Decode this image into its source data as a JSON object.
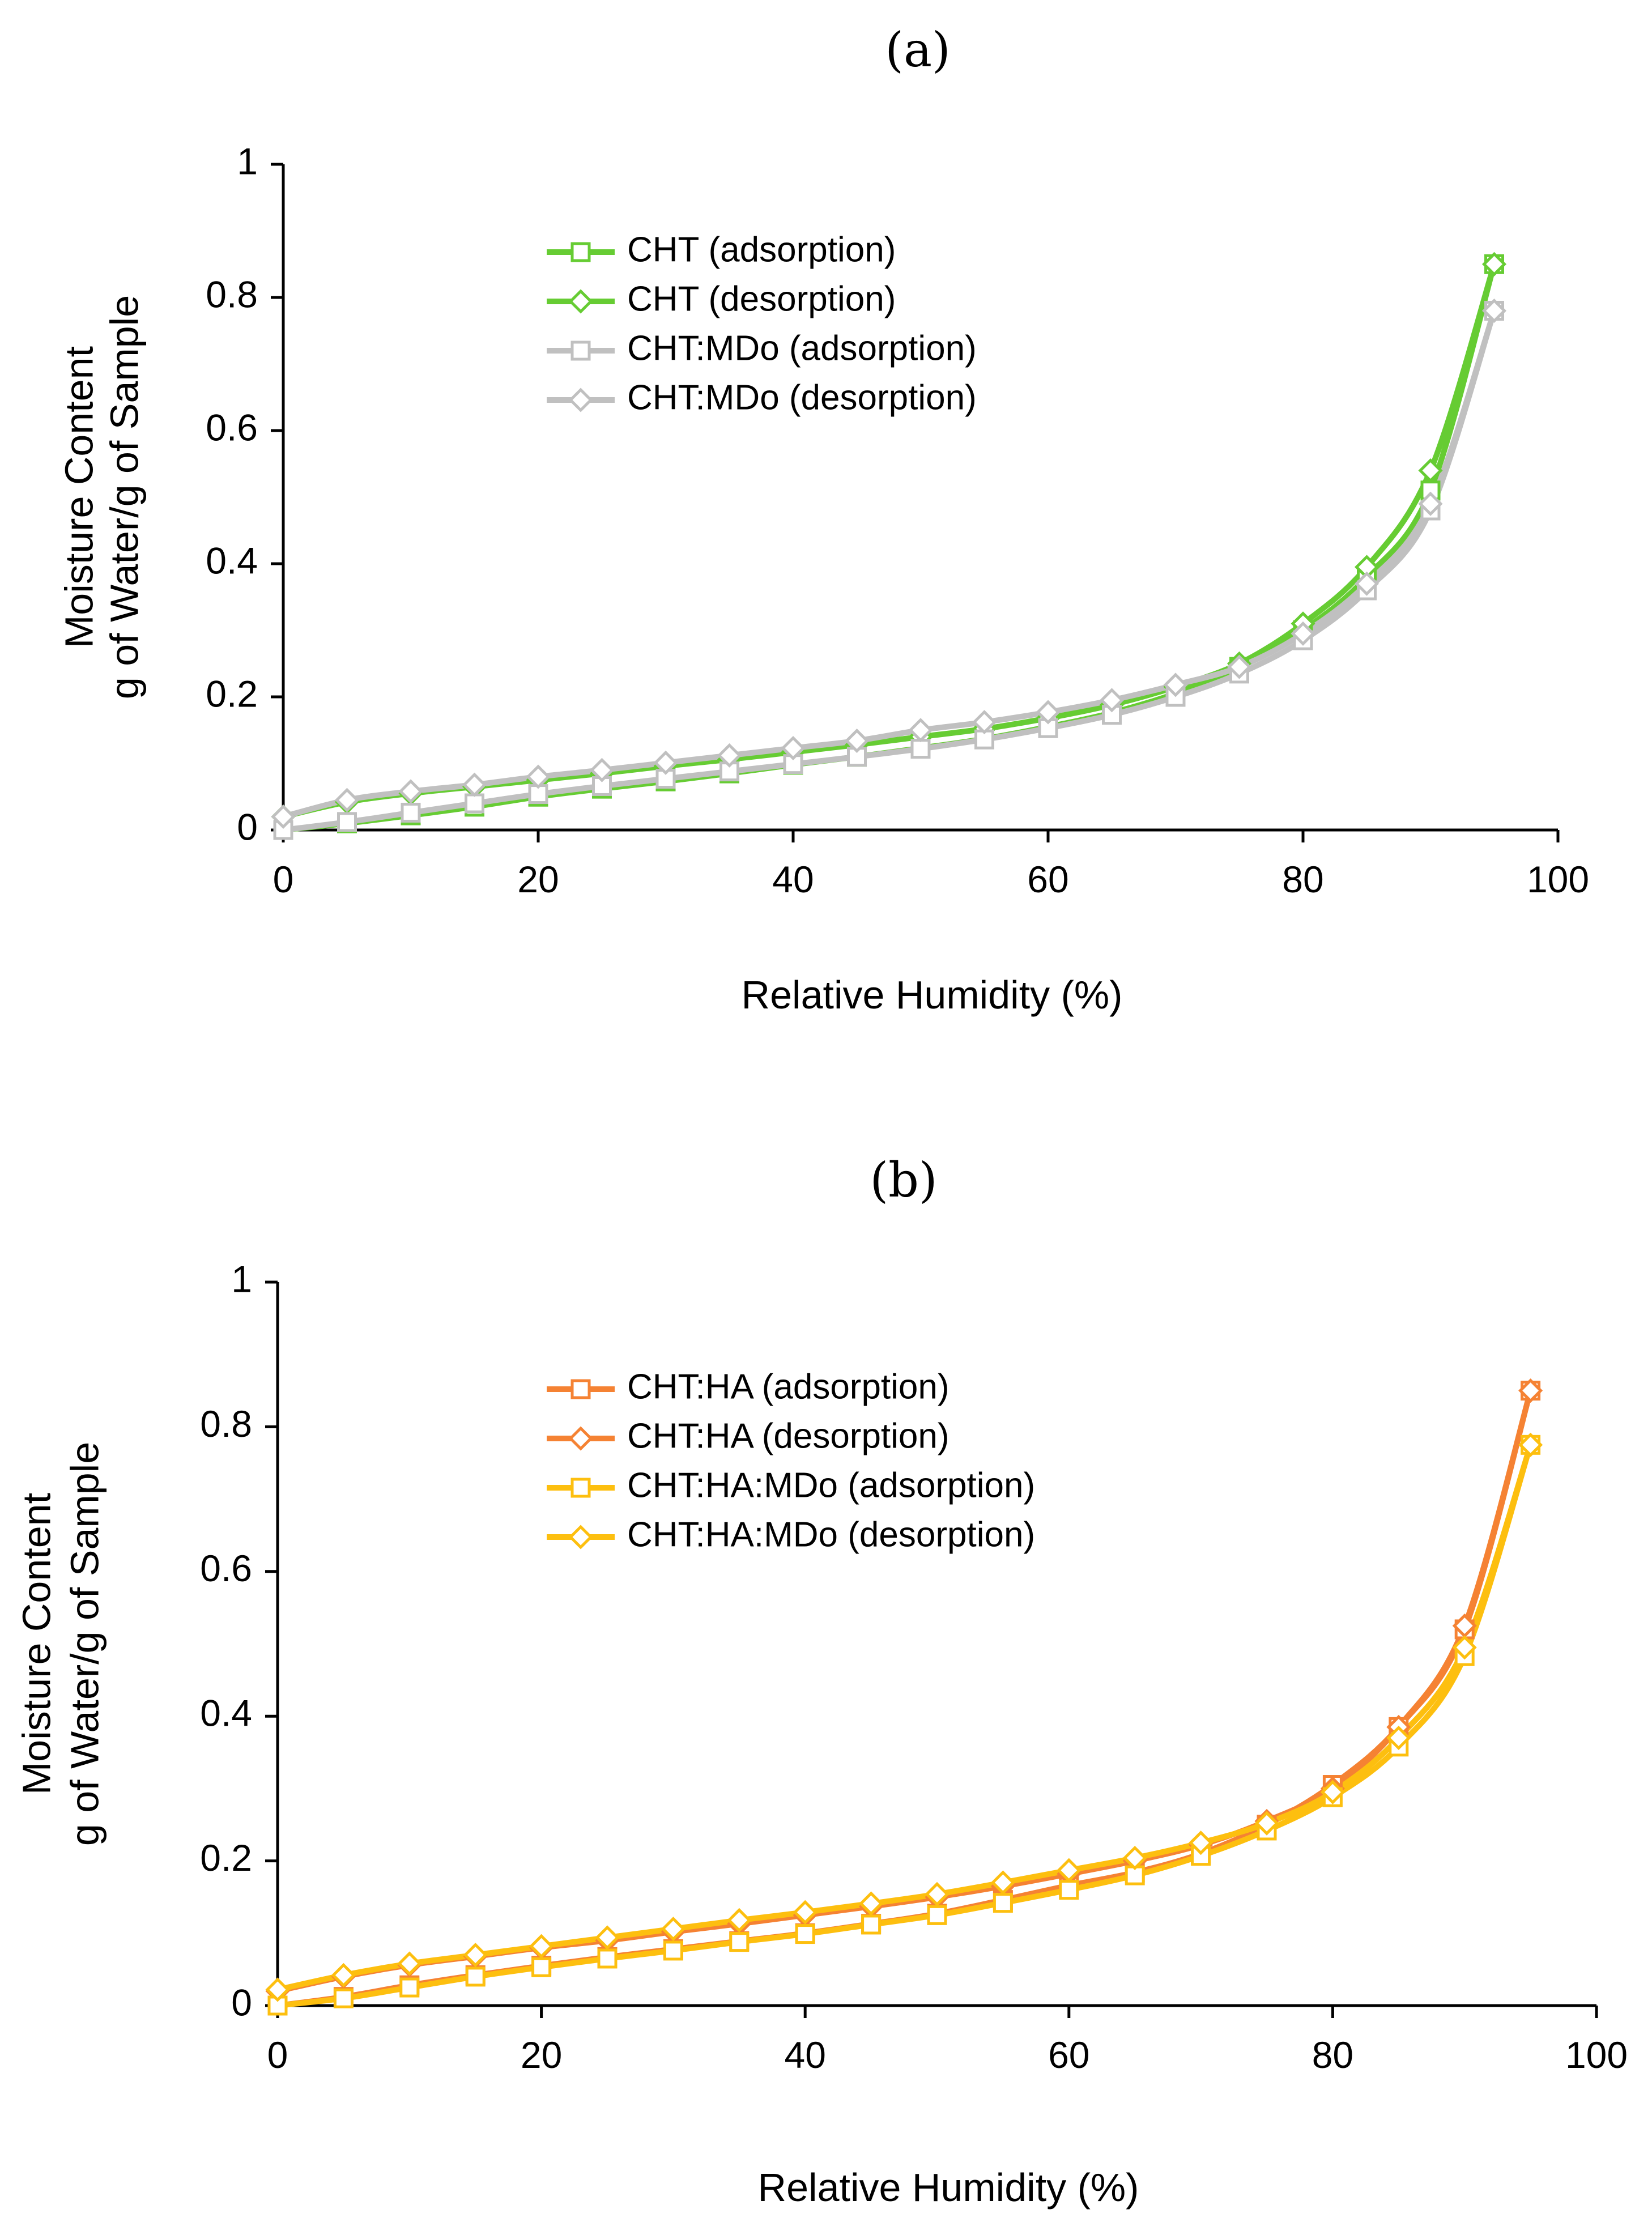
{
  "chart_data": [
    {
      "type": "line",
      "title": "(a)",
      "xlabel": "Relative Humidity (%)",
      "ylabel": [
        "Moisture Content",
        "g of Water/g of Sample"
      ],
      "xlim": [
        0,
        100
      ],
      "ylim": [
        0,
        1
      ],
      "xticks": [
        "0",
        "20",
        "40",
        "60",
        "80",
        "100"
      ],
      "yticks": [
        "0",
        "0.2",
        "0.4",
        "0.6",
        "0.8",
        "1"
      ],
      "legend_position": "top-center",
      "grid": false,
      "series": [
        {
          "name": "CHT (adsorption)",
          "color": "#66cc33",
          "marker": "square",
          "x": [
            0,
            5,
            10,
            15,
            20,
            25,
            30,
            35,
            40,
            45,
            50,
            55,
            60,
            65,
            70,
            75,
            80,
            85,
            90,
            95
          ],
          "y": [
            0.0,
            0.01,
            0.022,
            0.035,
            0.05,
            0.062,
            0.073,
            0.085,
            0.098,
            0.11,
            0.123,
            0.137,
            0.155,
            0.176,
            0.205,
            0.245,
            0.3,
            0.38,
            0.51,
            0.85
          ]
        },
        {
          "name": "CHT (desorption)",
          "color": "#66cc33",
          "marker": "diamond",
          "x": [
            0,
            5,
            10,
            15,
            20,
            25,
            30,
            35,
            40,
            45,
            50,
            55,
            60,
            65,
            70,
            75,
            80,
            85,
            90,
            95
          ],
          "y": [
            0.02,
            0.042,
            0.055,
            0.065,
            0.075,
            0.085,
            0.096,
            0.106,
            0.117,
            0.128,
            0.14,
            0.152,
            0.168,
            0.188,
            0.215,
            0.25,
            0.31,
            0.395,
            0.54,
            0.85
          ]
        },
        {
          "name": "CHT:MDo (adsorption)",
          "color": "#c0c0c0",
          "marker": "square",
          "x": [
            0,
            5,
            10,
            15,
            20,
            25,
            30,
            35,
            40,
            45,
            50,
            55,
            60,
            65,
            70,
            75,
            80,
            85,
            90,
            95
          ],
          "y": [
            0.0,
            0.012,
            0.026,
            0.04,
            0.054,
            0.066,
            0.077,
            0.088,
            0.099,
            0.11,
            0.122,
            0.136,
            0.153,
            0.173,
            0.2,
            0.235,
            0.285,
            0.36,
            0.48,
            0.78
          ]
        },
        {
          "name": "CHT:MDo (desorption)",
          "color": "#c0c0c0",
          "marker": "diamond",
          "x": [
            0,
            5,
            10,
            15,
            20,
            25,
            30,
            35,
            40,
            45,
            50,
            55,
            60,
            65,
            70,
            75,
            80,
            85,
            90,
            95
          ],
          "y": [
            0.02,
            0.045,
            0.058,
            0.068,
            0.08,
            0.09,
            0.101,
            0.112,
            0.123,
            0.134,
            0.15,
            0.162,
            0.177,
            0.195,
            0.218,
            0.245,
            0.295,
            0.37,
            0.49,
            0.78
          ]
        }
      ]
    },
    {
      "type": "line",
      "title": "(b)",
      "xlabel": "Relative Humidity (%)",
      "ylabel": [
        "Moisture Content",
        "g of Water/g of Sample"
      ],
      "xlim": [
        0,
        100
      ],
      "ylim": [
        0,
        1
      ],
      "xticks": [
        "0",
        "20",
        "40",
        "60",
        "80",
        "100"
      ],
      "yticks": [
        "0",
        "0.2",
        "0.4",
        "0.6",
        "0.8",
        "1"
      ],
      "legend_position": "top-center",
      "grid": false,
      "series": [
        {
          "name": "CHT:HA (adsorption)",
          "color": "#f58233",
          "marker": "square",
          "x": [
            0,
            5,
            10,
            15,
            20,
            25,
            30,
            35,
            40,
            45,
            50,
            55,
            60,
            65,
            70,
            75,
            80,
            85,
            90,
            95
          ],
          "y": [
            0.0,
            0.012,
            0.028,
            0.042,
            0.055,
            0.067,
            0.078,
            0.089,
            0.1,
            0.113,
            0.127,
            0.146,
            0.166,
            0.184,
            0.21,
            0.25,
            0.305,
            0.385,
            0.52,
            0.85
          ]
        },
        {
          "name": "CHT:HA (desorption)",
          "color": "#f58233",
          "marker": "diamond",
          "x": [
            0,
            5,
            10,
            15,
            20,
            25,
            30,
            35,
            40,
            45,
            50,
            55,
            60,
            65,
            70,
            75,
            80,
            85,
            90,
            95
          ],
          "y": [
            0.02,
            0.04,
            0.056,
            0.068,
            0.08,
            0.09,
            0.102,
            0.113,
            0.125,
            0.137,
            0.15,
            0.165,
            0.182,
            0.2,
            0.222,
            0.255,
            0.3,
            0.385,
            0.525,
            0.85
          ]
        },
        {
          "name": "CHT:HA:MDo (adsorption)",
          "color": "#fdbf0f",
          "marker": "square",
          "x": [
            0,
            5,
            10,
            15,
            20,
            25,
            30,
            35,
            40,
            45,
            50,
            55,
            60,
            65,
            70,
            75,
            80,
            85,
            90,
            95
          ],
          "y": [
            0.0,
            0.01,
            0.025,
            0.04,
            0.053,
            0.065,
            0.076,
            0.088,
            0.099,
            0.112,
            0.125,
            0.142,
            0.16,
            0.18,
            0.207,
            0.242,
            0.288,
            0.358,
            0.483,
            0.775
          ]
        },
        {
          "name": "CHT:HA:MDo (desorption)",
          "color": "#fdbf0f",
          "marker": "diamond",
          "x": [
            0,
            5,
            10,
            15,
            20,
            25,
            30,
            35,
            40,
            45,
            50,
            55,
            60,
            65,
            70,
            75,
            80,
            85,
            90,
            95
          ],
          "y": [
            0.022,
            0.042,
            0.058,
            0.07,
            0.082,
            0.094,
            0.106,
            0.118,
            0.129,
            0.141,
            0.154,
            0.17,
            0.187,
            0.204,
            0.225,
            0.252,
            0.295,
            0.37,
            0.495,
            0.775
          ]
        }
      ]
    }
  ]
}
